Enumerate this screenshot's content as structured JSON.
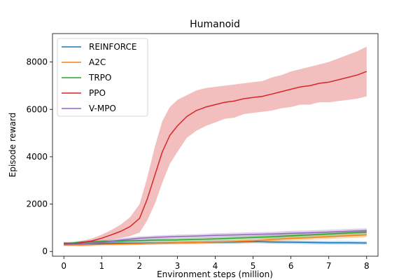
{
  "chart_data": {
    "type": "line",
    "title": "Humanoid",
    "xlabel": "Environment steps (million)",
    "ylabel": "Episode reward",
    "xlim": [
      -0.3,
      8.3
    ],
    "ylim": [
      -200,
      9200
    ],
    "xticks": [
      0,
      1,
      2,
      3,
      4,
      5,
      6,
      7,
      8
    ],
    "yticks": [
      0,
      2000,
      4000,
      6000,
      8000
    ],
    "legend_position": "top-left",
    "grid": false,
    "series": [
      {
        "name": "REINFORCE",
        "color": "#1f77b4",
        "x": [
          0,
          0.5,
          1,
          1.5,
          2,
          2.5,
          3,
          3.5,
          4,
          4.5,
          5,
          5.5,
          6,
          6.5,
          7,
          7.5,
          8
        ],
        "y": [
          300,
          330,
          340,
          350,
          350,
          360,
          370,
          380,
          390,
          400,
          420,
          400,
          390,
          380,
          370,
          370,
          360
        ],
        "band": [
          60,
          60,
          60,
          60,
          60,
          60,
          60,
          60,
          60,
          70,
          70,
          70,
          70,
          70,
          70,
          70,
          70
        ]
      },
      {
        "name": "A2C",
        "color": "#ff7f0e",
        "x": [
          0,
          0.5,
          1,
          1.5,
          2,
          2.5,
          3,
          3.5,
          4,
          4.5,
          5,
          5.5,
          6,
          6.5,
          7,
          7.5,
          8
        ],
        "y": [
          280,
          270,
          300,
          310,
          330,
          350,
          370,
          380,
          400,
          420,
          450,
          500,
          550,
          580,
          620,
          660,
          700
        ],
        "band": [
          50,
          50,
          50,
          60,
          60,
          60,
          60,
          70,
          70,
          70,
          80,
          80,
          90,
          90,
          100,
          100,
          100
        ]
      },
      {
        "name": "TRPO",
        "color": "#2ca02c",
        "x": [
          0,
          0.5,
          1,
          1.5,
          2,
          2.5,
          3,
          3.5,
          4,
          4.5,
          5,
          5.5,
          6,
          6.5,
          7,
          7.5,
          8
        ],
        "y": [
          320,
          400,
          420,
          440,
          460,
          480,
          490,
          510,
          530,
          560,
          590,
          620,
          660,
          700,
          740,
          780,
          820
        ],
        "band": [
          60,
          60,
          60,
          60,
          60,
          70,
          70,
          70,
          80,
          80,
          80,
          90,
          90,
          90,
          100,
          100,
          100
        ]
      },
      {
        "name": "PPO",
        "color": "#d62728",
        "x": [
          0,
          0.25,
          0.5,
          0.75,
          1,
          1.25,
          1.5,
          1.75,
          2,
          2.2,
          2.4,
          2.6,
          2.8,
          3,
          3.25,
          3.5,
          3.75,
          4,
          4.25,
          4.5,
          4.75,
          5,
          5.25,
          5.5,
          5.75,
          6,
          6.25,
          6.5,
          6.75,
          7,
          7.25,
          7.5,
          7.75,
          8
        ],
        "y": [
          350,
          320,
          380,
          450,
          560,
          700,
          850,
          1050,
          1400,
          2200,
          3200,
          4200,
          4900,
          5300,
          5700,
          5950,
          6100,
          6200,
          6300,
          6350,
          6450,
          6500,
          6550,
          6650,
          6750,
          6850,
          6950,
          7000,
          7100,
          7150,
          7250,
          7350,
          7450,
          7600
        ],
        "band": [
          60,
          60,
          80,
          100,
          150,
          200,
          280,
          400,
          600,
          900,
          1200,
          1300,
          1200,
          1100,
          900,
          850,
          800,
          750,
          700,
          700,
          650,
          650,
          650,
          700,
          700,
          750,
          750,
          800,
          800,
          850,
          900,
          950,
          1000,
          1050
        ]
      },
      {
        "name": "V-MPO",
        "color": "#9467bd",
        "x": [
          0,
          0.5,
          1,
          1.5,
          2,
          2.5,
          3,
          3.5,
          4,
          4.5,
          5,
          5.5,
          6,
          6.5,
          7,
          7.5,
          8
        ],
        "y": [
          300,
          320,
          380,
          480,
          560,
          600,
          630,
          650,
          680,
          700,
          720,
          740,
          770,
          790,
          820,
          850,
          880
        ],
        "band": [
          60,
          60,
          70,
          80,
          80,
          80,
          80,
          80,
          90,
          90,
          90,
          90,
          100,
          100,
          100,
          100,
          100
        ]
      }
    ]
  }
}
